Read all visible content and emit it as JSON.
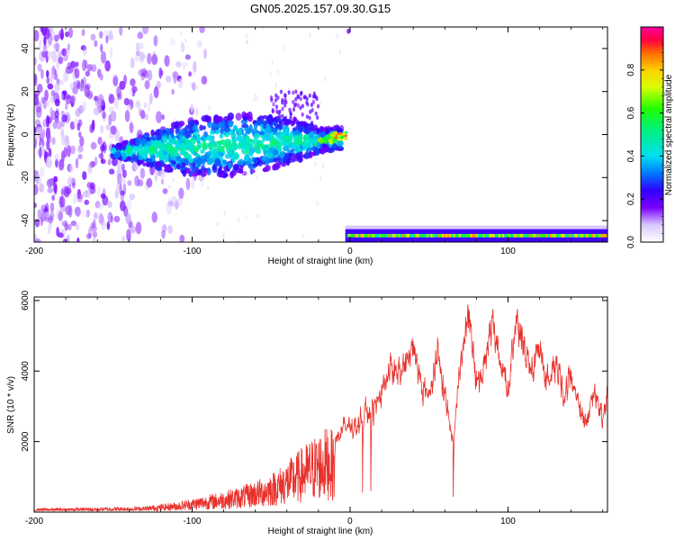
{
  "figure": {
    "title": "GN05.2025.157.09.30.G15"
  },
  "chart_data": [
    {
      "type": "heatmap",
      "xlabel": "Height of straight line (km)",
      "ylabel": "Frequency (Hz)",
      "xlim": [
        -200,
        163
      ],
      "ylim": [
        -50,
        50
      ],
      "xticks": [
        -200,
        -100,
        0,
        100
      ],
      "xtick_labels": [
        "-200",
        "-100",
        "0",
        "100"
      ],
      "yticks": [
        -40,
        -20,
        0,
        20,
        40
      ],
      "ytick_labels": [
        "-40",
        "-20",
        "0",
        "20",
        "40"
      ],
      "colorbar": {
        "label": "Normalized spectral amplitude",
        "range": [
          0,
          1
        ],
        "ticks": [
          0.0,
          0.2,
          0.4,
          0.6,
          0.8
        ],
        "tick_labels": [
          "0.0",
          "0.2",
          "0.4",
          "0.6",
          "0.8"
        ],
        "colormap": "rainbow (white-violet-blue-cyan-green-yellow-orange-red-magenta)"
      },
      "features": [
        {
          "name": "noisy scatter",
          "x_range": [
            -200,
            -100
          ],
          "freq_range": [
            -50,
            50
          ],
          "amplitude": 0.1
        },
        {
          "name": "main signal band",
          "x_range": [
            -145,
            -5
          ],
          "freq_center": [
            -8,
            0
          ],
          "amplitude_max": 0.85
        },
        {
          "name": "second band",
          "x_range": [
            0,
            163
          ],
          "freq_center": -47,
          "amplitude_max": 0.85
        }
      ]
    },
    {
      "type": "line",
      "xlabel": "Height of straight line (km)",
      "ylabel": "SNR (10 * v/v)",
      "xlim": [
        -200,
        163
      ],
      "ylim": [
        0,
        6100
      ],
      "xticks": [
        -200,
        -100,
        0,
        100
      ],
      "xtick_labels": [
        "-200",
        "-100",
        "0",
        "100"
      ],
      "yticks": [
        2000,
        4000,
        6000
      ],
      "ytick_labels": [
        "2000",
        "4000",
        "6000"
      ],
      "color": "#e8312c",
      "envelope": {
        "x": [
          -200,
          -160,
          -130,
          -110,
          -90,
          -70,
          -55,
          -45,
          -35,
          -25,
          -15,
          -10,
          -5,
          0,
          5,
          10,
          15,
          20,
          25,
          30,
          35,
          40,
          45,
          50,
          55,
          60,
          65,
          70,
          75,
          80,
          85,
          90,
          95,
          100,
          105,
          110,
          115,
          120,
          125,
          130,
          135,
          140,
          145,
          150,
          155,
          160,
          163
        ],
        "y": [
          100,
          120,
          150,
          260,
          450,
          650,
          900,
          1150,
          1500,
          1900,
          2200,
          2100,
          2400,
          2500,
          2600,
          2900,
          3000,
          3500,
          4300,
          3900,
          4400,
          4700,
          3800,
          3300,
          4700,
          3400,
          2000,
          4600,
          5700,
          3700,
          4300,
          5600,
          4300,
          3600,
          5600,
          4700,
          4000,
          4900,
          3800,
          4400,
          3600,
          4000,
          3000,
          2700,
          3700,
          2600,
          3500
        ]
      }
    }
  ]
}
